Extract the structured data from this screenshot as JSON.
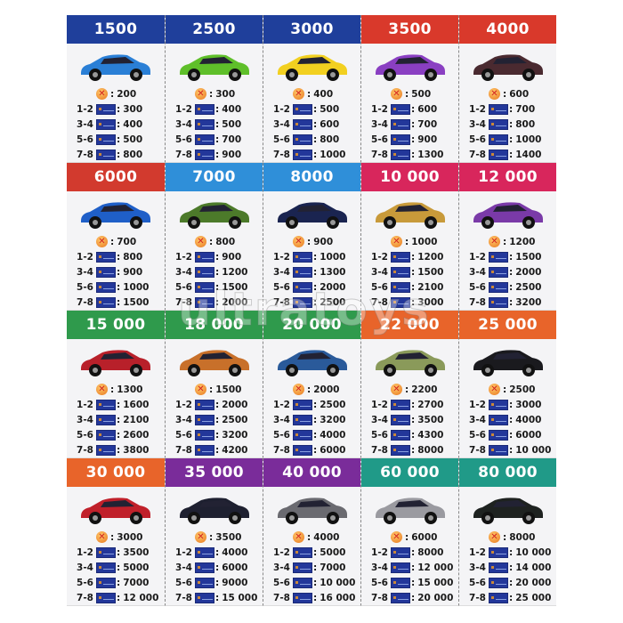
{
  "watermark": "ultratoys",
  "coin_icon": "coin-x-icon",
  "card_icon": "bank-card-icon",
  "row_labels": [
    "1-2",
    "3-4",
    "5-6",
    "7-8"
  ],
  "cards": [
    {
      "price": "1500",
      "color": "#1f3f9b",
      "car_color": "#2a7fd6",
      "coin": "200",
      "values": [
        "300",
        "400",
        "500",
        "800"
      ]
    },
    {
      "price": "2500",
      "color": "#1f3f9b",
      "car_color": "#5fbf2a",
      "coin": "300",
      "values": [
        "400",
        "500",
        "700",
        "900"
      ]
    },
    {
      "price": "3000",
      "color": "#1f3f9b",
      "car_color": "#f2d020",
      "coin": "400",
      "values": [
        "500",
        "600",
        "800",
        "1000"
      ]
    },
    {
      "price": "3500",
      "color": "#d9392b",
      "car_color": "#8a3fc2",
      "coin": "500",
      "values": [
        "600",
        "700",
        "900",
        "1300"
      ]
    },
    {
      "price": "4000",
      "color": "#d9392b",
      "car_color": "#4a2a30",
      "coin": "600",
      "values": [
        "700",
        "800",
        "1000",
        "1400"
      ]
    },
    {
      "price": "6000",
      "color": "#d23a2e",
      "car_color": "#1f5fc8",
      "coin": "700",
      "values": [
        "800",
        "900",
        "1000",
        "1500"
      ]
    },
    {
      "price": "7000",
      "color": "#2f8fd9",
      "car_color": "#4c7a2a",
      "coin": "800",
      "values": [
        "900",
        "1200",
        "1500",
        "2000"
      ]
    },
    {
      "price": "8000",
      "color": "#2f8fd9",
      "car_color": "#1a2450",
      "coin": "900",
      "values": [
        "1000",
        "1300",
        "2000",
        "2500"
      ]
    },
    {
      "price": "10 000",
      "color": "#d8265c",
      "car_color": "#c89a3a",
      "coin": "1000",
      "values": [
        "1200",
        "1500",
        "2100",
        "3000"
      ]
    },
    {
      "price": "12 000",
      "color": "#d8265c",
      "car_color": "#7a3aa8",
      "coin": "1200",
      "values": [
        "1500",
        "2000",
        "2500",
        "3200"
      ]
    },
    {
      "price": "15 000",
      "color": "#2f9a4c",
      "car_color": "#b8202a",
      "coin": "1300",
      "values": [
        "1600",
        "2100",
        "2600",
        "3800"
      ]
    },
    {
      "price": "18 000",
      "color": "#2f9a4c",
      "car_color": "#c8702a",
      "coin": "1500",
      "values": [
        "2000",
        "2500",
        "3200",
        "4200"
      ]
    },
    {
      "price": "20 000",
      "color": "#2f9a4c",
      "car_color": "#2a5a9a",
      "coin": "2000",
      "values": [
        "2500",
        "3200",
        "4000",
        "6000"
      ]
    },
    {
      "price": "22 000",
      "color": "#e8642a",
      "car_color": "#8a9a5a",
      "coin": "2200",
      "values": [
        "2700",
        "3500",
        "4300",
        "8000"
      ]
    },
    {
      "price": "25 000",
      "color": "#e8642a",
      "car_color": "#1a1a1e",
      "coin": "2500",
      "values": [
        "3000",
        "4000",
        "6000",
        "10 000"
      ]
    },
    {
      "price": "30 000",
      "color": "#e8642a",
      "car_color": "#c0202a",
      "coin": "3000",
      "values": [
        "3500",
        "5000",
        "7000",
        "12 000"
      ]
    },
    {
      "price": "35 000",
      "color": "#7a2c9a",
      "car_color": "#1e2030",
      "coin": "3500",
      "values": [
        "4000",
        "6000",
        "9000",
        "15 000"
      ]
    },
    {
      "price": "40 000",
      "color": "#7a2c9a",
      "car_color": "#6a6a70",
      "coin": "4000",
      "values": [
        "5000",
        "7000",
        "10 000",
        "16 000"
      ]
    },
    {
      "price": "60 000",
      "color": "#209a88",
      "car_color": "#9a9aa0",
      "coin": "6000",
      "values": [
        "8000",
        "12 000",
        "15 000",
        "20 000"
      ]
    },
    {
      "price": "80 000",
      "color": "#209a88",
      "car_color": "#1e2220",
      "coin": "8000",
      "values": [
        "10 000",
        "14 000",
        "20 000",
        "25 000"
      ]
    }
  ]
}
